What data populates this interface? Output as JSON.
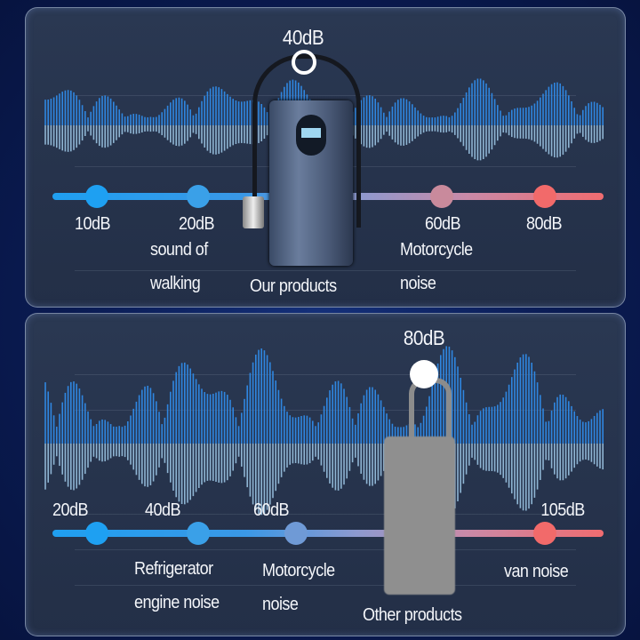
{
  "top_panel": {
    "product_level": "40dB",
    "product_label": "Our products",
    "scale": [
      {
        "value": "10dB",
        "caption": []
      },
      {
        "value": "20dB",
        "caption": [
          "sound of",
          "walking"
        ]
      },
      {
        "value": "60dB",
        "caption": [
          "Motorcycle",
          "noise"
        ]
      },
      {
        "value": "80dB",
        "caption": []
      }
    ],
    "dot_colors": [
      "#1ea0f2",
      "#3aa0e8",
      "#c98a9c",
      "#f26a6a"
    ]
  },
  "bottom_panel": {
    "product_level": "80dB",
    "product_label": "Other products",
    "scale": [
      {
        "value": "20dB",
        "caption": []
      },
      {
        "value": "40dB",
        "caption": [
          "Refrigerator",
          "engine noise"
        ]
      },
      {
        "value": "60dB",
        "caption": [
          "Motorcycle",
          "noise"
        ]
      },
      {
        "value": "105dB",
        "caption": [
          "van noise"
        ]
      }
    ],
    "dot_colors": [
      "#1ea0f2",
      "#3aa0e8",
      "#6f9ad6",
      "#f26a6a"
    ]
  },
  "colors": {
    "background": "#0a1b52",
    "panel": "#253350",
    "wave_blue": "#2f86e0",
    "wave_light": "#a9d6f5"
  }
}
